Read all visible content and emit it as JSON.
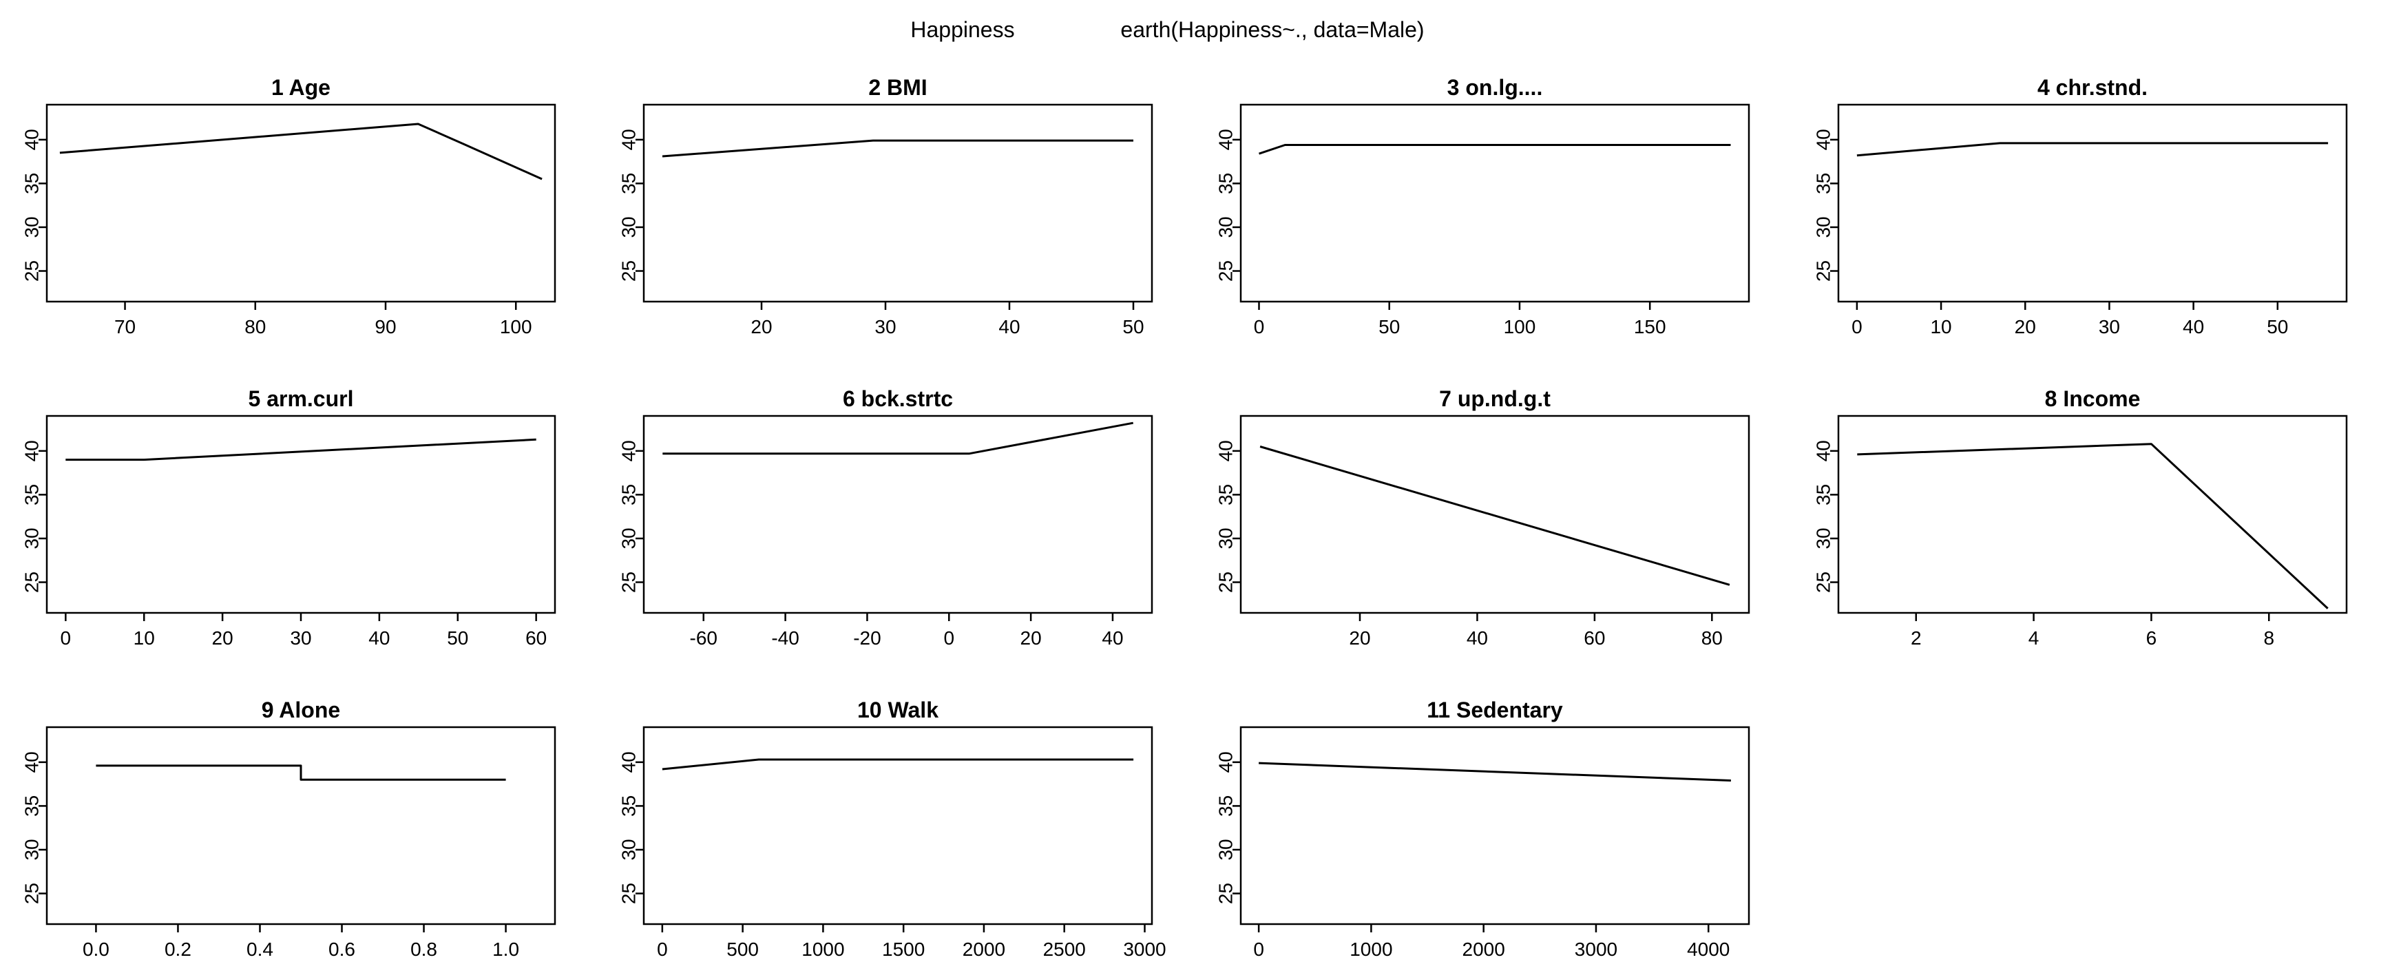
{
  "figure": {
    "title_left": "Happiness",
    "title_right": "earth(Happiness~., data=Male)"
  },
  "chart_data": [
    {
      "type": "line",
      "title": "1  Age",
      "xlim": [
        64,
        103
      ],
      "ylim": [
        21.5,
        44
      ],
      "xticks": [
        70,
        80,
        90,
        100
      ],
      "yticks": [
        25,
        30,
        35,
        40
      ],
      "x": [
        65,
        92.5,
        96,
        102
      ],
      "y": [
        38.5,
        41.8,
        39.5,
        35.5
      ]
    },
    {
      "type": "line",
      "title": "2  BMI",
      "xlim": [
        10.5,
        51.5
      ],
      "ylim": [
        21.5,
        44
      ],
      "xticks": [
        20,
        30,
        40,
        50
      ],
      "yticks": [
        25,
        30,
        35,
        40
      ],
      "x": [
        12,
        29,
        50
      ],
      "y": [
        38.1,
        39.9,
        39.9
      ]
    },
    {
      "type": "line",
      "title": "3  on.lg....",
      "xlim": [
        -7,
        188
      ],
      "ylim": [
        21.5,
        44
      ],
      "xticks": [
        0,
        50,
        100,
        150
      ],
      "yticks": [
        25,
        30,
        35,
        40
      ],
      "x": [
        0,
        10,
        181
      ],
      "y": [
        38.4,
        39.4,
        39.4
      ]
    },
    {
      "type": "line",
      "title": "4  chr.stnd.",
      "xlim": [
        -2.2,
        58.2
      ],
      "ylim": [
        21.5,
        44
      ],
      "xticks": [
        0,
        10,
        20,
        30,
        40,
        50
      ],
      "yticks": [
        25,
        30,
        35,
        40
      ],
      "x": [
        0,
        17,
        56
      ],
      "y": [
        38.2,
        39.6,
        39.6
      ]
    },
    {
      "type": "line",
      "title": "5  arm.curl",
      "xlim": [
        -2.4,
        62.4
      ],
      "ylim": [
        21.5,
        44
      ],
      "xticks": [
        0,
        10,
        20,
        30,
        40,
        50,
        60
      ],
      "yticks": [
        25,
        30,
        35,
        40
      ],
      "x": [
        0,
        10,
        60
      ],
      "y": [
        39.0,
        39.0,
        41.3
      ]
    },
    {
      "type": "line",
      "title": "6  bck.strtc",
      "xlim": [
        -74.6,
        49.6
      ],
      "ylim": [
        21.5,
        44
      ],
      "xticks": [
        -60,
        -40,
        -20,
        0,
        20,
        40
      ],
      "yticks": [
        25,
        30,
        35,
        40
      ],
      "x": [
        -70,
        5,
        45
      ],
      "y": [
        39.7,
        39.7,
        43.2
      ]
    },
    {
      "type": "line",
      "title": "7  up.nd.g.t",
      "xlim": [
        -0.3,
        86.3
      ],
      "ylim": [
        21.5,
        44
      ],
      "xticks": [
        20,
        40,
        60,
        80
      ],
      "yticks": [
        25,
        30,
        35,
        40
      ],
      "x": [
        3,
        83
      ],
      "y": [
        40.5,
        24.7
      ]
    },
    {
      "type": "line",
      "title": "8  Income",
      "xlim": [
        0.68,
        9.32
      ],
      "ylim": [
        21.5,
        44
      ],
      "xticks": [
        2,
        4,
        6,
        8
      ],
      "yticks": [
        25,
        30,
        35,
        40
      ],
      "x": [
        1,
        6,
        9
      ],
      "y": [
        39.6,
        40.8,
        22.0
      ]
    },
    {
      "type": "line",
      "title": "9  Alone",
      "xlim": [
        -0.12,
        1.12
      ],
      "ylim": [
        21.5,
        44
      ],
      "xticks": [
        0.0,
        0.2,
        0.4,
        0.6,
        0.8,
        1.0
      ],
      "xtick_labels": [
        "0.0",
        "0.2",
        "0.4",
        "0.6",
        "0.8",
        "1.0"
      ],
      "yticks": [
        25,
        30,
        35,
        40
      ],
      "x": [
        0,
        0.5,
        0.5,
        1
      ],
      "y": [
        39.6,
        39.6,
        38.0,
        38.0
      ]
    },
    {
      "type": "line",
      "title": "10  Walk",
      "xlim": [
        -115,
        3045
      ],
      "ylim": [
        21.5,
        44
      ],
      "xticks": [
        0,
        500,
        1000,
        1500,
        2000,
        2500,
        3000
      ],
      "yticks": [
        25,
        30,
        35,
        40
      ],
      "x": [
        0,
        600,
        2930
      ],
      "y": [
        39.2,
        40.3,
        40.3
      ]
    },
    {
      "type": "line",
      "title": "11  Sedentary",
      "xlim": [
        -160,
        4360
      ],
      "ylim": [
        21.5,
        44
      ],
      "xticks": [
        0,
        1000,
        2000,
        3000,
        4000
      ],
      "yticks": [
        25,
        30,
        35,
        40
      ],
      "x": [
        0,
        4200
      ],
      "y": [
        39.9,
        37.9
      ]
    }
  ]
}
